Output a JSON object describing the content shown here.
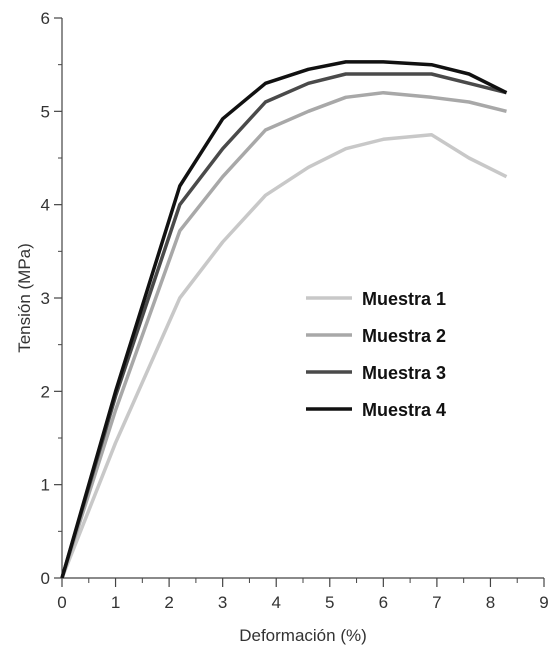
{
  "chart_data": {
    "type": "line",
    "xlabel": "Deformación (%)",
    "ylabel": "Tensión (MPa)",
    "xlim": [
      0,
      9
    ],
    "ylim": [
      0,
      6
    ],
    "xticks": [
      0,
      1,
      2,
      3,
      4,
      5,
      6,
      7,
      8,
      9
    ],
    "yticks": [
      0,
      1,
      2,
      3,
      4,
      5,
      6
    ],
    "xtick_labels": [
      "0",
      "1",
      "2",
      "3",
      "4",
      "5",
      "6",
      "7",
      "8",
      "9"
    ],
    "ytick_labels": [
      "0",
      "1",
      "2",
      "3",
      "4",
      "5",
      "6"
    ],
    "grid": false,
    "legend_position": "center-right",
    "series": [
      {
        "name": "Muestra 1",
        "color": "#c8c8c8",
        "points": [
          [
            0,
            0
          ],
          [
            1,
            1.45
          ],
          [
            2.2,
            3.0
          ],
          [
            3,
            3.6
          ],
          [
            3.8,
            4.1
          ],
          [
            4.6,
            4.4
          ],
          [
            5.3,
            4.6
          ],
          [
            6,
            4.7
          ],
          [
            6.9,
            4.75
          ],
          [
            7.6,
            4.5
          ],
          [
            8.3,
            4.3
          ]
        ]
      },
      {
        "name": "Muestra 2",
        "color": "#a8a8a8",
        "points": [
          [
            0,
            0
          ],
          [
            1,
            1.8
          ],
          [
            2.2,
            3.72
          ],
          [
            3,
            4.3
          ],
          [
            3.8,
            4.8
          ],
          [
            4.6,
            5.0
          ],
          [
            5.3,
            5.15
          ],
          [
            6,
            5.2
          ],
          [
            6.9,
            5.15
          ],
          [
            7.6,
            5.1
          ],
          [
            8.3,
            5.0
          ]
        ]
      },
      {
        "name": "Muestra 3",
        "color": "#4a4a4a",
        "points": [
          [
            0,
            0
          ],
          [
            1,
            1.95
          ],
          [
            2.2,
            4.0
          ],
          [
            3,
            4.6
          ],
          [
            3.8,
            5.1
          ],
          [
            4.6,
            5.3
          ],
          [
            5.3,
            5.4
          ],
          [
            6,
            5.4
          ],
          [
            6.9,
            5.4
          ],
          [
            7.6,
            5.3
          ],
          [
            8.3,
            5.2
          ]
        ]
      },
      {
        "name": "Muestra 4",
        "color": "#111111",
        "points": [
          [
            0,
            0
          ],
          [
            1,
            2.0
          ],
          [
            2.2,
            4.2
          ],
          [
            3,
            4.92
          ],
          [
            3.8,
            5.3
          ],
          [
            4.6,
            5.45
          ],
          [
            5.3,
            5.53
          ],
          [
            6,
            5.53
          ],
          [
            6.9,
            5.5
          ],
          [
            7.6,
            5.4
          ],
          [
            8.3,
            5.2
          ]
        ]
      }
    ]
  }
}
